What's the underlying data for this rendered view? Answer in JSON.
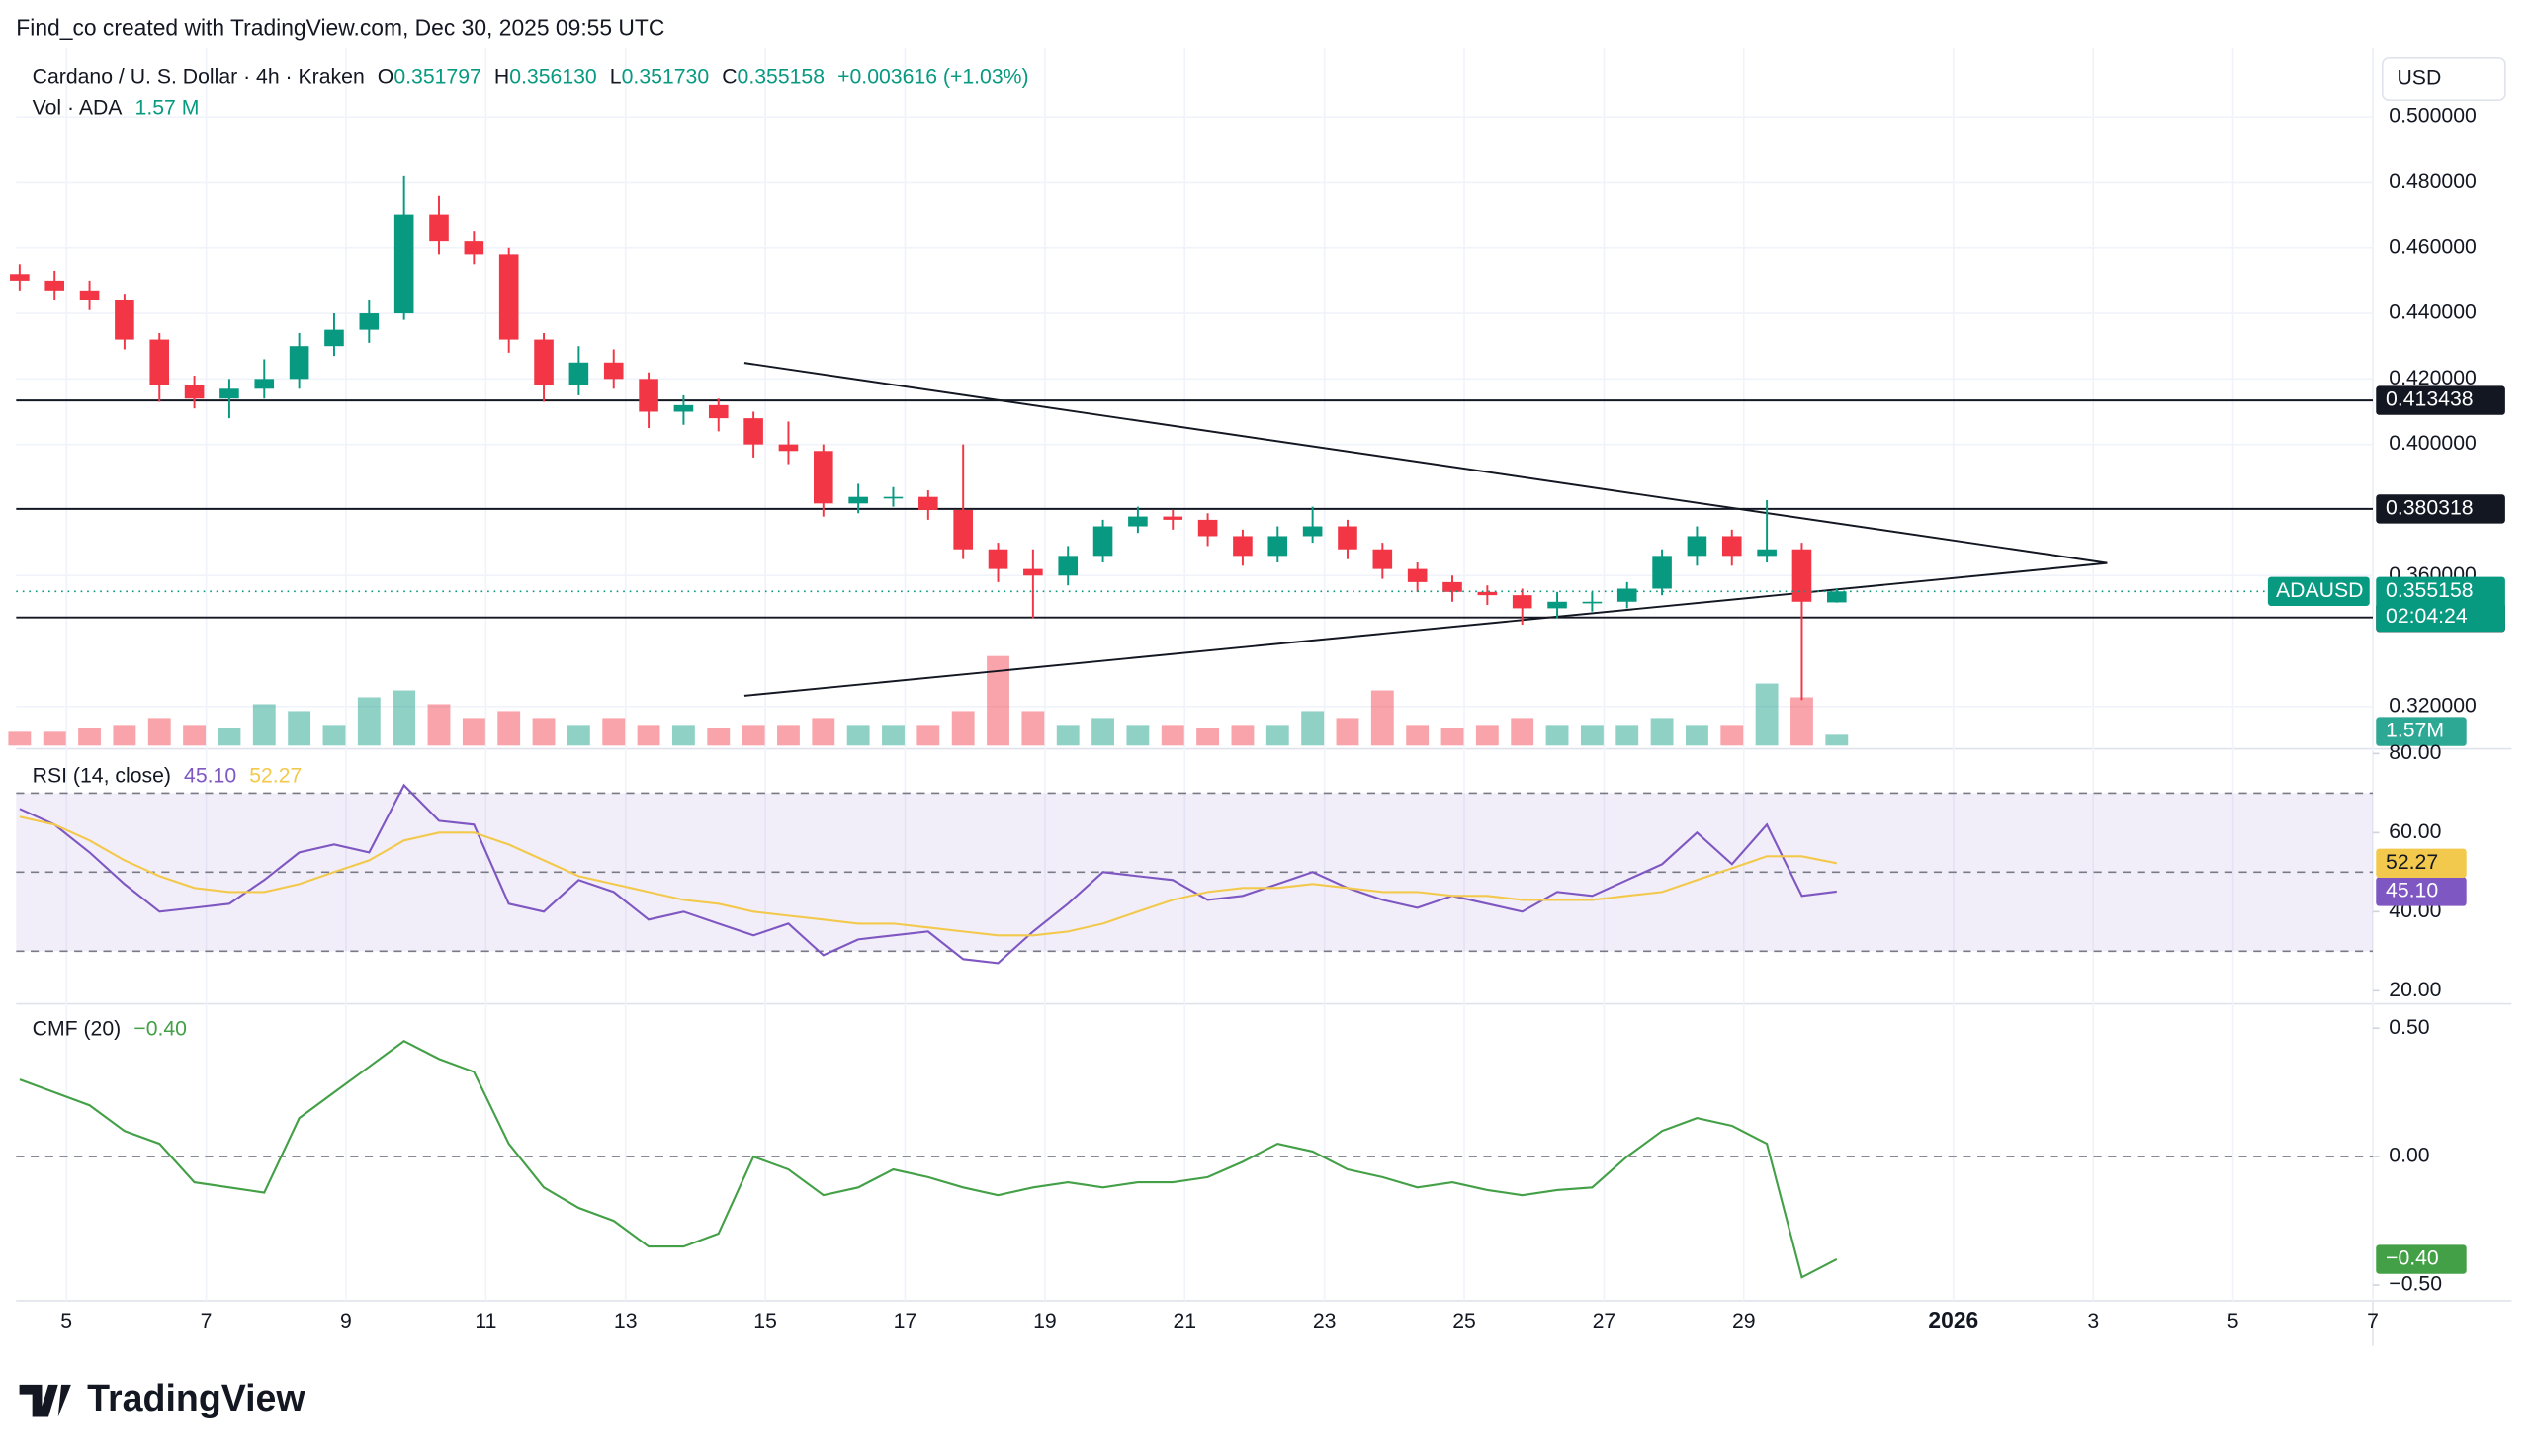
{
  "header": {
    "credit": "Find_co created with TradingView.com, Dec 30, 2025 09:55 UTC",
    "symbol": "Cardano / U. S. Dollar · 4h · Kraken",
    "ohlc": [
      {
        "key": "O",
        "value": "0.351797"
      },
      {
        "key": "H",
        "value": "0.356130"
      },
      {
        "key": "L",
        "value": "0.351730"
      },
      {
        "key": "C",
        "value": "0.355158"
      }
    ],
    "change": "+0.003616 (+1.03%)",
    "volume_title": "Vol · ADA",
    "volume_value": "1.57 M",
    "currency": "USD",
    "logo": "TradingView"
  },
  "chart_data": [
    {
      "type": "candlestick",
      "x": [
        4.33,
        4.83,
        5.33,
        5.83,
        6.33,
        6.83,
        7.33,
        7.83,
        8.33,
        8.83,
        9.33,
        9.83,
        10.33,
        10.83,
        11.33,
        11.83,
        12.33,
        12.83,
        13.33,
        13.83,
        14.33,
        14.83,
        15.33,
        15.83,
        16.33,
        16.83,
        17.33,
        17.83,
        18.33,
        18.83,
        19.33,
        19.83,
        20.33,
        20.83,
        21.33,
        21.83,
        22.33,
        22.83,
        23.33,
        23.83,
        24.33,
        24.83,
        25.33,
        25.83,
        26.33,
        26.83,
        27.33,
        27.83,
        28.33,
        28.83,
        29.33,
        29.83,
        30.33
      ],
      "open": [
        0.452,
        0.45,
        0.447,
        0.444,
        0.432,
        0.418,
        0.414,
        0.417,
        0.42,
        0.43,
        0.435,
        0.44,
        0.47,
        0.462,
        0.458,
        0.432,
        0.418,
        0.425,
        0.42,
        0.41,
        0.412,
        0.408,
        0.4,
        0.398,
        0.382,
        0.384,
        0.384,
        0.38,
        0.368,
        0.362,
        0.36,
        0.366,
        0.375,
        0.378,
        0.377,
        0.372,
        0.366,
        0.372,
        0.375,
        0.368,
        0.362,
        0.358,
        0.355,
        0.354,
        0.35,
        0.352,
        0.352,
        0.356,
        0.366,
        0.372,
        0.366,
        0.368,
        0.351797
      ],
      "high": [
        0.455,
        0.453,
        0.45,
        0.446,
        0.434,
        0.421,
        0.42,
        0.426,
        0.434,
        0.44,
        0.444,
        0.482,
        0.476,
        0.465,
        0.46,
        0.434,
        0.43,
        0.429,
        0.422,
        0.415,
        0.414,
        0.41,
        0.407,
        0.4,
        0.388,
        0.387,
        0.386,
        0.4,
        0.37,
        0.368,
        0.369,
        0.377,
        0.381,
        0.38,
        0.379,
        0.374,
        0.375,
        0.381,
        0.377,
        0.37,
        0.364,
        0.36,
        0.357,
        0.356,
        0.355,
        0.355,
        0.358,
        0.368,
        0.375,
        0.374,
        0.383,
        0.37,
        0.35613
      ],
      "low": [
        0.447,
        0.444,
        0.441,
        0.429,
        0.413,
        0.411,
        0.408,
        0.414,
        0.417,
        0.427,
        0.431,
        0.438,
        0.458,
        0.455,
        0.428,
        0.413,
        0.415,
        0.417,
        0.405,
        0.406,
        0.404,
        0.396,
        0.394,
        0.378,
        0.379,
        0.381,
        0.377,
        0.365,
        0.358,
        0.347,
        0.357,
        0.364,
        0.373,
        0.374,
        0.369,
        0.363,
        0.364,
        0.37,
        0.365,
        0.359,
        0.355,
        0.352,
        0.351,
        0.345,
        0.347,
        0.349,
        0.35,
        0.354,
        0.363,
        0.363,
        0.364,
        0.322,
        0.35173
      ],
      "close": [
        0.45,
        0.447,
        0.444,
        0.432,
        0.418,
        0.414,
        0.417,
        0.42,
        0.43,
        0.435,
        0.44,
        0.47,
        0.462,
        0.458,
        0.432,
        0.418,
        0.425,
        0.42,
        0.41,
        0.412,
        0.408,
        0.4,
        0.398,
        0.382,
        0.384,
        0.384,
        0.38,
        0.368,
        0.362,
        0.36,
        0.366,
        0.375,
        0.378,
        0.377,
        0.372,
        0.366,
        0.372,
        0.375,
        0.368,
        0.362,
        0.358,
        0.355,
        0.354,
        0.35,
        0.352,
        0.352,
        0.356,
        0.366,
        0.372,
        0.366,
        0.368,
        0.352,
        0.355158
      ],
      "volume": {
        "values": [
          2,
          2,
          2.5,
          3,
          4,
          3,
          2.5,
          6,
          5,
          3,
          7,
          8,
          6,
          4,
          5,
          4,
          3,
          4,
          3,
          3,
          2.5,
          3,
          3,
          4,
          3,
          3,
          3,
          5,
          13,
          5,
          3,
          4,
          3,
          3,
          2.5,
          3,
          3,
          5,
          4,
          8,
          3,
          2.5,
          3,
          4,
          3,
          3,
          3,
          4,
          3,
          3,
          9,
          7,
          1.57
        ],
        "value_labels": {
          "52": "1.57M"
        },
        "ylim": [
          0,
          100
        ]
      },
      "colors": {
        "up": "#089981",
        "down": "#f23645",
        "volume_up": "rgba(8,153,129,0.45)",
        "volume_down": "rgba(242,54,69,0.45)"
      },
      "xlim": [
        4.28,
        38.0
      ],
      "xticks": [
        5,
        7,
        9,
        11,
        13,
        15,
        17,
        19,
        21,
        23,
        25,
        27,
        29,
        {
          "value": 32,
          "label": "2026"
        },
        {
          "value": 34,
          "label": "3"
        },
        {
          "value": 36,
          "label": "5"
        },
        {
          "value": 38,
          "label": "7"
        }
      ],
      "ylim": [
        0.3081,
        0.5184
      ],
      "yticks": [
        {
          "value": 0.32,
          "label": "0.320000"
        },
        {
          "value": 0.36,
          "label": "0.360000"
        },
        {
          "value": 0.4,
          "label": "0.400000"
        },
        {
          "value": 0.42,
          "label": "0.420000"
        },
        {
          "value": 0.44,
          "label": "0.440000"
        },
        {
          "value": 0.46,
          "label": "0.460000"
        },
        {
          "value": 0.48,
          "label": "0.480000"
        },
        {
          "value": 0.5,
          "label": "0.500000"
        }
      ],
      "levels": [
        0.413438,
        0.380318,
        0.347192
      ],
      "trendlines": [
        {
          "x": [
            14.7,
            34.2
          ],
          "y": [
            0.4249,
            0.3638
          ]
        },
        {
          "x": [
            14.7,
            34.2
          ],
          "y": [
            0.3233,
            0.3638
          ]
        }
      ],
      "last_price": {
        "symbol": "ADAUSD",
        "countdown": "02:04:24"
      },
      "grid": true
    },
    {
      "type": "line",
      "title": "RSI (14, close)",
      "series": [
        {
          "color": "#7e57c2",
          "values": [
            66,
            62,
            55,
            47,
            40,
            41,
            42,
            48,
            55,
            57,
            55,
            72,
            63,
            62,
            42,
            40,
            48,
            45,
            38,
            40,
            37,
            34,
            37,
            29,
            33,
            34,
            35,
            28,
            27,
            35,
            42,
            50,
            49,
            48,
            43,
            44,
            47,
            50,
            46,
            43,
            41,
            44,
            42,
            40,
            45,
            44,
            48,
            52,
            60,
            52,
            62,
            44,
            45.1
          ],
          "value_labels": {
            "52": "45.10"
          }
        },
        {
          "color": "#f2c94c",
          "values": [
            64,
            62,
            58,
            53,
            49,
            46,
            45,
            45,
            47,
            50,
            53,
            58,
            60,
            60,
            57,
            53,
            49,
            47,
            45,
            43,
            42,
            40,
            39,
            38,
            37,
            37,
            36,
            35,
            34,
            34,
            35,
            37,
            40,
            43,
            45,
            46,
            46,
            47,
            46,
            45,
            45,
            44,
            44,
            43,
            43,
            43,
            44,
            45,
            48,
            51,
            54,
            54,
            52.27
          ],
          "value_labels": {
            "52": "52.27"
          }
        }
      ],
      "ylim": [
        16.7,
        80.8
      ],
      "yticks": [
        {
          "value": 80,
          "label": "80.00"
        },
        {
          "value": 60,
          "label": "60.00"
        },
        {
          "value": 40,
          "label": "40.00"
        },
        {
          "value": 20,
          "label": "20.00"
        }
      ],
      "band": [
        30,
        70
      ],
      "midline": 50
    },
    {
      "type": "line",
      "title": "CMF (20)",
      "series": [
        {
          "color": "#43a047",
          "values": [
            0.3,
            0.25,
            0.2,
            0.1,
            0.05,
            -0.1,
            -0.12,
            -0.14,
            0.15,
            0.25,
            0.35,
            0.45,
            0.38,
            0.33,
            0.05,
            -0.12,
            -0.2,
            -0.25,
            -0.35,
            -0.35,
            -0.3,
            0.0,
            -0.05,
            -0.15,
            -0.12,
            -0.05,
            -0.08,
            -0.12,
            -0.15,
            -0.12,
            -0.1,
            -0.12,
            -0.1,
            -0.1,
            -0.08,
            -0.02,
            0.05,
            0.02,
            -0.05,
            -0.08,
            -0.12,
            -0.1,
            -0.13,
            -0.15,
            -0.13,
            -0.12,
            0.0,
            0.1,
            0.15,
            0.12,
            0.05,
            -0.47,
            -0.4
          ],
          "value_labels": {
            "52": "−0.40"
          }
        }
      ],
      "ylim": [
        -0.555,
        0.595
      ],
      "yticks": [
        {
          "value": 0.5,
          "label": "0.50"
        },
        {
          "value": 0,
          "label": "0.00"
        },
        {
          "value": -0.5,
          "label": "−0.50"
        }
      ],
      "midline": 0
    }
  ]
}
